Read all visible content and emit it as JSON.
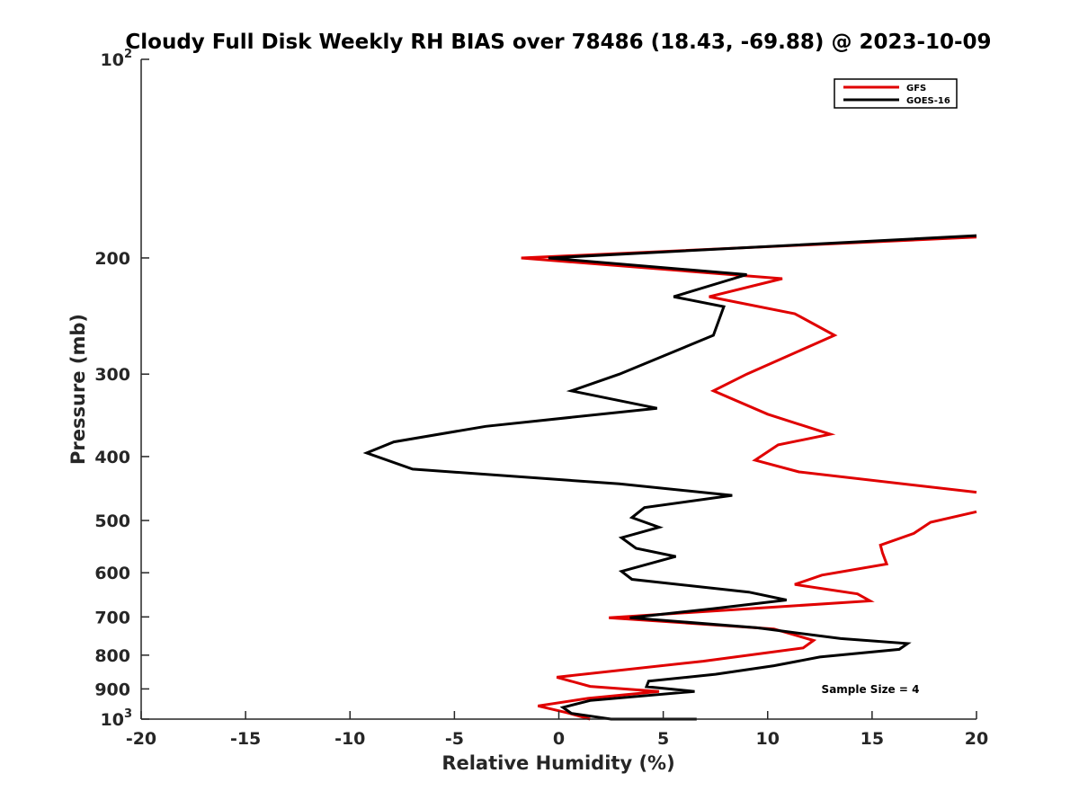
{
  "chart_data": {
    "type": "line",
    "title": "Cloudy Full Disk Weekly RH BIAS over 78486 (18.43, -69.88) @ 2023-10-09",
    "xlabel": "Relative Humidity (%)",
    "ylabel": "Pressure (mb)",
    "xlim": [
      -20,
      20
    ],
    "ylim": [
      100,
      1000
    ],
    "y_scale": "log",
    "y_reversed": true,
    "x_ticks": [
      "-20",
      "-15",
      "-10",
      "-5",
      "0",
      "5",
      "10",
      "15",
      "20"
    ],
    "y_ticks": [
      {
        "value": 100,
        "base": "10",
        "exp": "2"
      },
      {
        "value": 200,
        "label": "200"
      },
      {
        "value": 300,
        "label": "300"
      },
      {
        "value": 400,
        "label": "400"
      },
      {
        "value": 500,
        "label": "500"
      },
      {
        "value": 600,
        "label": "600"
      },
      {
        "value": 700,
        "label": "700"
      },
      {
        "value": 800,
        "label": "800"
      },
      {
        "value": 900,
        "label": "900"
      },
      {
        "value": 1000,
        "base": "10",
        "exp": "3"
      }
    ],
    "grid": false,
    "legend_position": "top-right",
    "annotation": "Sample Size = 4",
    "series": [
      {
        "name": "GFS",
        "color": "#e00000",
        "x": [
          20,
          -1.8,
          10.7,
          7.2,
          11.3,
          13.2,
          9.0,
          7.4,
          10.0,
          13.0,
          10.5,
          9.4,
          11.5,
          20,
          null,
          20,
          17.8,
          17.0,
          15.4,
          15.5,
          15.7,
          12.6,
          11.3,
          14.3,
          14.9,
          2.4,
          10.3,
          12.2,
          11.7,
          6.9,
          -0.1,
          1.5,
          4.8,
          1.4,
          -1.0,
          0.4,
          1.5
        ],
        "y": [
          186,
          200,
          215,
          229,
          243,
          262,
          300,
          318,
          345,
          370,
          384,
          405,
          422,
          453,
          null,
          485,
          503,
          523,
          545,
          560,
          582,
          605,
          625,
          646,
          662,
          702,
          730,
          760,
          780,
          817,
          864,
          892,
          908,
          930,
          955,
          978,
          1000
        ]
      },
      {
        "name": "GOES-16",
        "color": "#000000",
        "x": [
          20,
          -0.5,
          9.0,
          5.5,
          7.9,
          7.4,
          2.9,
          0.6,
          4.7,
          -3.5,
          -7.9,
          -9.2,
          -7.0,
          2.9,
          8.3,
          4.1,
          3.5,
          4.8,
          3.0,
          3.7,
          5.6,
          3.0,
          3.5,
          9.1,
          10.9,
          7.4,
          3.4,
          9.5,
          13.5,
          16.7,
          16.3,
          12.5,
          10.3,
          7.5,
          4.3,
          4.2,
          6.5,
          1.5,
          0.2,
          0.6,
          2.5,
          6.6
        ],
        "y": [
          185,
          200,
          212,
          229,
          237,
          262,
          300,
          318,
          338,
          360,
          380,
          395,
          418,
          440,
          458,
          478,
          495,
          512,
          531,
          551,
          567,
          597,
          614,
          642,
          660,
          680,
          702,
          727,
          755,
          768,
          784,
          805,
          830,
          855,
          876,
          893,
          908,
          937,
          960,
          980,
          1000,
          1000
        ]
      }
    ]
  }
}
